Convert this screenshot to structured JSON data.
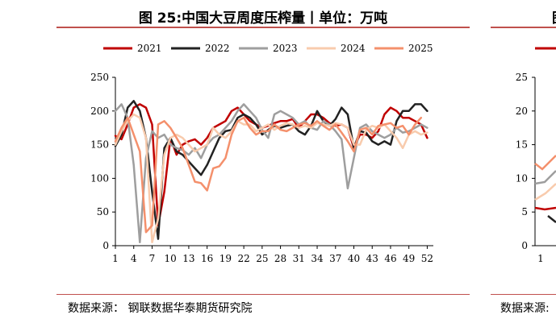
{
  "panel_left": {
    "title": "图 25:中国大豆周度压榨量丨单位：万吨",
    "source": "数据来源：  钢联数据华泰期货研究院"
  },
  "panel_right": {
    "title_fragment": "图",
    "source_fragment": "数据来源:",
    "y_ticks": [
      "25",
      "20",
      "15",
      "10",
      "5",
      "0"
    ],
    "x_tick_first": "1"
  },
  "chart_data": {
    "type": "line",
    "title": "图 25:中国大豆周度压榨量丨单位：万吨",
    "xlabel": "",
    "ylabel": "",
    "xlim": [
      1,
      53
    ],
    "ylim": [
      0,
      250
    ],
    "x_ticks": [
      1,
      4,
      7,
      10,
      13,
      16,
      19,
      22,
      25,
      28,
      31,
      34,
      37,
      40,
      43,
      46,
      49,
      52
    ],
    "y_ticks": [
      0,
      50,
      100,
      150,
      200,
      250
    ],
    "legend_position": "top",
    "series": [
      {
        "name": "2021",
        "color": "#c00000",
        "width": 2.5,
        "values": [
          163,
          158,
          180,
          205,
          210,
          205,
          180,
          30,
          80,
          160,
          135,
          150,
          155,
          158,
          150,
          160,
          175,
          180,
          185,
          200,
          205,
          195,
          185,
          180,
          175,
          178,
          182,
          185,
          185,
          188,
          175,
          185,
          195,
          195,
          190,
          182,
          178,
          180,
          175,
          145,
          165,
          165,
          160,
          170,
          195,
          205,
          200,
          190,
          190,
          185,
          180,
          160
        ]
      },
      {
        "name": "2022",
        "color": "#222222",
        "width": 2.5,
        "values": [
          148,
          165,
          205,
          215,
          200,
          160,
          80,
          10,
          145,
          160,
          140,
          135,
          125,
          115,
          105,
          120,
          140,
          160,
          170,
          172,
          190,
          195,
          190,
          180,
          165,
          172,
          178,
          175,
          178,
          180,
          170,
          165,
          178,
          200,
          185,
          178,
          188,
          205,
          195,
          145,
          170,
          168,
          155,
          150,
          155,
          150,
          185,
          200,
          200,
          210,
          210,
          200
        ]
      },
      {
        "name": "2023",
        "color": "#9e9e9e",
        "width": 2.5,
        "values": [
          200,
          210,
          190,
          120,
          5,
          130,
          170,
          160,
          165,
          150,
          145,
          142,
          135,
          145,
          130,
          150,
          160,
          165,
          175,
          185,
          200,
          210,
          200,
          190,
          172,
          160,
          195,
          200,
          195,
          190,
          180,
          185,
          175,
          172,
          185,
          180,
          170,
          158,
          85,
          130,
          175,
          180,
          170,
          165,
          160,
          165,
          175,
          168,
          170,
          175,
          180,
          175
        ]
      },
      {
        "name": "2024",
        "color": "#f8cbad",
        "width": 2.5,
        "values": [
          150,
          170,
          185,
          195,
          190,
          160,
          5,
          40,
          135,
          160,
          165,
          160,
          150,
          140,
          145,
          150,
          175,
          165,
          160,
          170,
          185,
          180,
          180,
          170,
          175,
          180,
          172,
          178,
          182,
          180,
          175,
          178,
          175,
          182,
          180,
          178,
          182,
          180,
          175,
          150,
          150,
          172,
          178,
          175,
          180,
          170,
          160,
          145,
          165,
          170,
          165,
          168
        ]
      },
      {
        "name": "2025",
        "color": "#f4906c",
        "width": 2.5,
        "values": [
          155,
          175,
          190,
          165,
          140,
          20,
          30,
          180,
          185,
          175,
          160,
          145,
          120,
          95,
          93,
          82,
          115,
          118,
          130,
          165,
          185,
          190,
          175,
          165,
          170,
          170,
          180,
          172,
          170,
          175,
          180,
          182,
          178,
          185,
          178,
          172,
          180,
          168,
          155,
          140,
          172,
          175,
          165,
          178,
          180,
          182,
          175,
          178,
          165,
          180,
          190,
          null
        ]
      }
    ]
  }
}
